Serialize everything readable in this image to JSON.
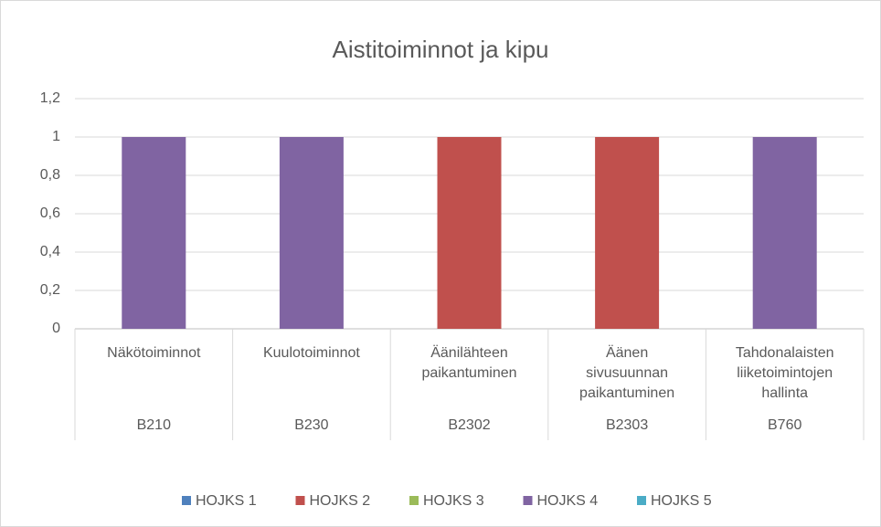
{
  "chart_data": {
    "type": "stacked_bar",
    "title": "Aistitoiminnot ja kipu",
    "categories": [
      "Näkötoiminnot",
      "Kuulotoiminnot",
      "Äänilähteen paikantuminen",
      "Äänen sivusuunnan paikantuminen",
      "Tahdonalaisten liiketoimintojen hallinta"
    ],
    "category_groups": [
      "B210",
      "B230",
      "B2302",
      "B2303",
      "B760"
    ],
    "series": [
      {
        "name": "HOJKS 1",
        "color": "#4f81bd",
        "values": [
          0,
          0,
          0,
          0,
          0
        ]
      },
      {
        "name": "HOJKS 2",
        "color": "#c0504d",
        "values": [
          0,
          0,
          1,
          1,
          0
        ]
      },
      {
        "name": "HOJKS 3",
        "color": "#9bbb59",
        "values": [
          0,
          0,
          0,
          0,
          0
        ]
      },
      {
        "name": "HOJKS 4",
        "color": "#8064a2",
        "values": [
          1,
          1,
          0,
          0,
          1
        ]
      },
      {
        "name": "HOJKS 5",
        "color": "#4bacc6",
        "values": [
          0,
          0,
          0,
          0,
          0
        ]
      }
    ],
    "ylim": [
      0,
      1.2
    ],
    "yticks": [
      0,
      {
        "value": 0.2,
        "label": "0,2"
      },
      {
        "value": 0.4,
        "label": "0,4"
      },
      {
        "value": 0.6,
        "label": "0,6"
      },
      {
        "value": 0.8,
        "label": "0,8"
      },
      1,
      {
        "value": 1.2,
        "label": "1,2"
      }
    ],
    "grid": true,
    "legend": "bottom"
  }
}
